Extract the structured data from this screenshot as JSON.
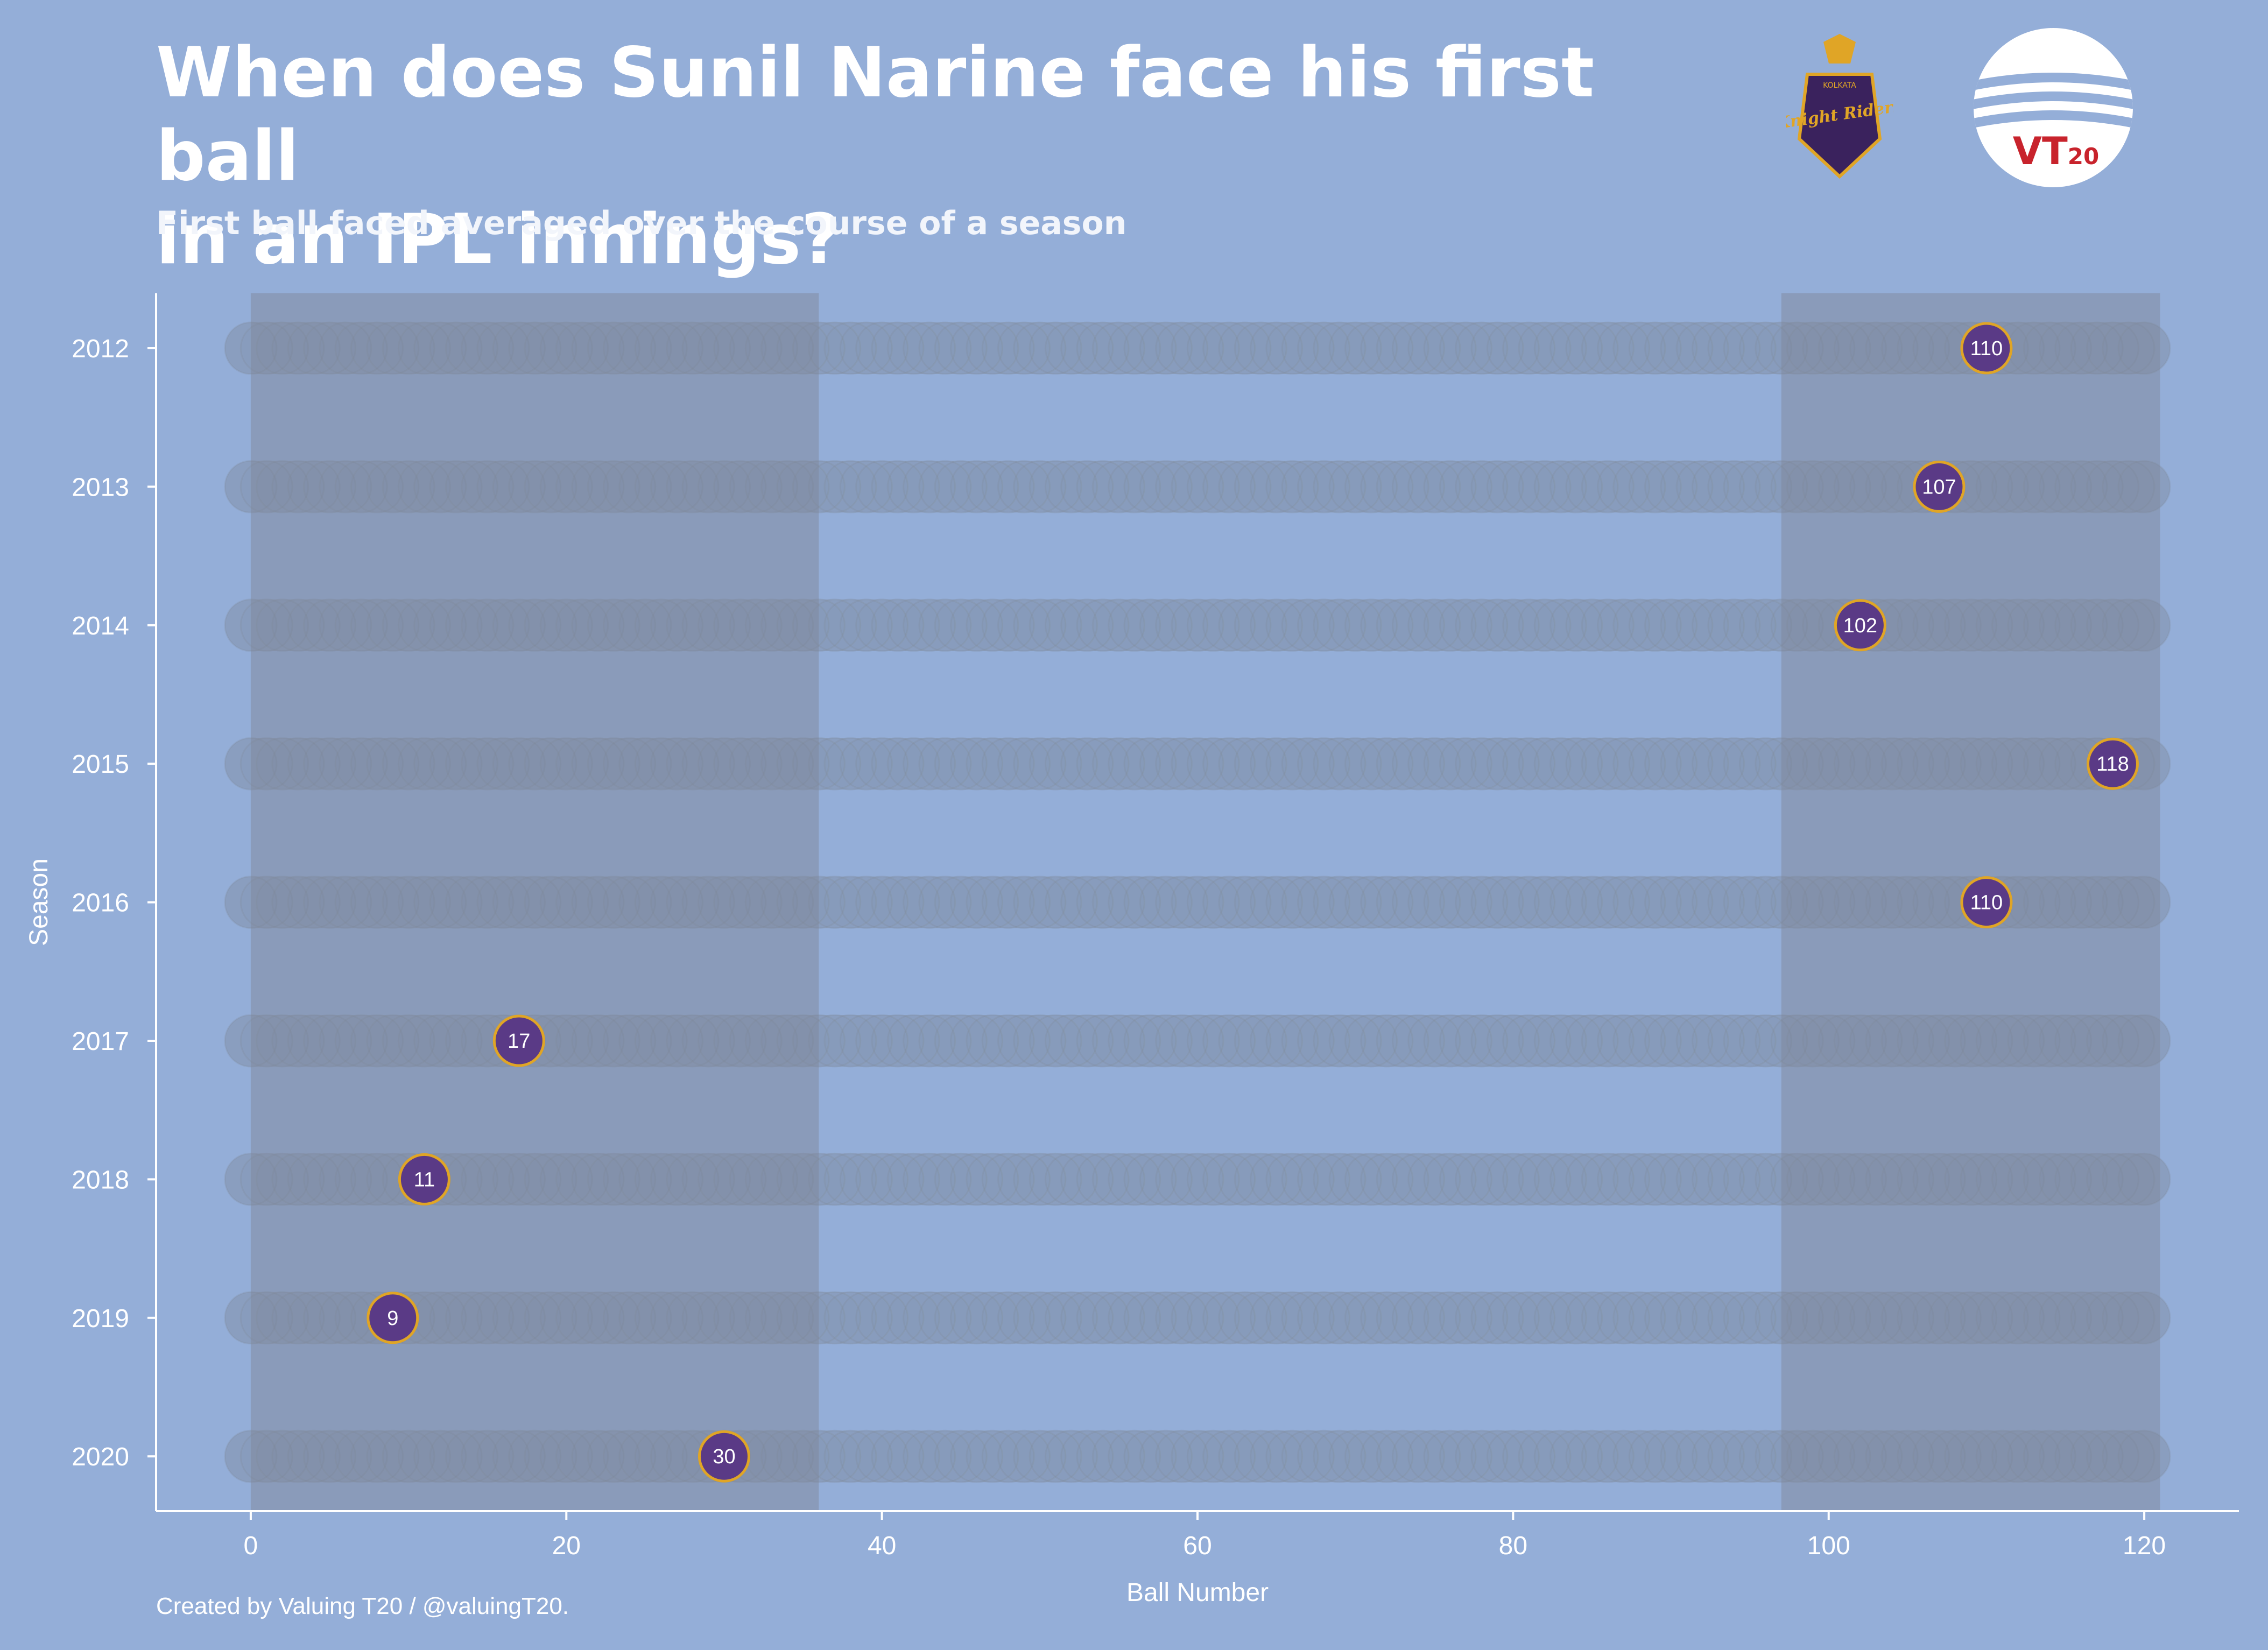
{
  "header": {
    "title_line1": "When does Sunil Narine face his first ball",
    "title_line2": "in an IPL innings?",
    "subtitle": "First ball faced averaged over the course of a season"
  },
  "footer": {
    "caption": "Created by Valuing T20 / @valuingT20."
  },
  "logos": {
    "kkr": {
      "text": "Knight Riders",
      "small_text": "KOLKATA"
    },
    "vt20": {
      "text": "VT",
      "sub": "20"
    }
  },
  "colors": {
    "background": "#94aed8",
    "band": "#8a9bba",
    "track": "#7f8797",
    "marker_fill": "#5a3a86",
    "marker_stroke": "#e0a526",
    "kkr_gold": "#e0a526",
    "kkr_purple": "#3a225d",
    "vt_red": "#c8232c"
  },
  "chart_data": {
    "type": "scatter",
    "xlabel": "Ball Number",
    "ylabel": "Season",
    "xlim": [
      -6,
      126
    ],
    "xticks": [
      0,
      20,
      40,
      60,
      80,
      100,
      120
    ],
    "categories": [
      "2012",
      "2013",
      "2014",
      "2015",
      "2016",
      "2017",
      "2018",
      "2019",
      "2020"
    ],
    "values": [
      110,
      107,
      102,
      118,
      110,
      17,
      11,
      9,
      30
    ],
    "labels": [
      "110",
      "107",
      "102",
      "118",
      "110",
      "17",
      "11",
      "9",
      "30"
    ],
    "track_range": [
      0,
      120
    ],
    "shaded_ranges": [
      [
        0,
        36
      ],
      [
        97,
        121
      ]
    ],
    "grid": false
  }
}
